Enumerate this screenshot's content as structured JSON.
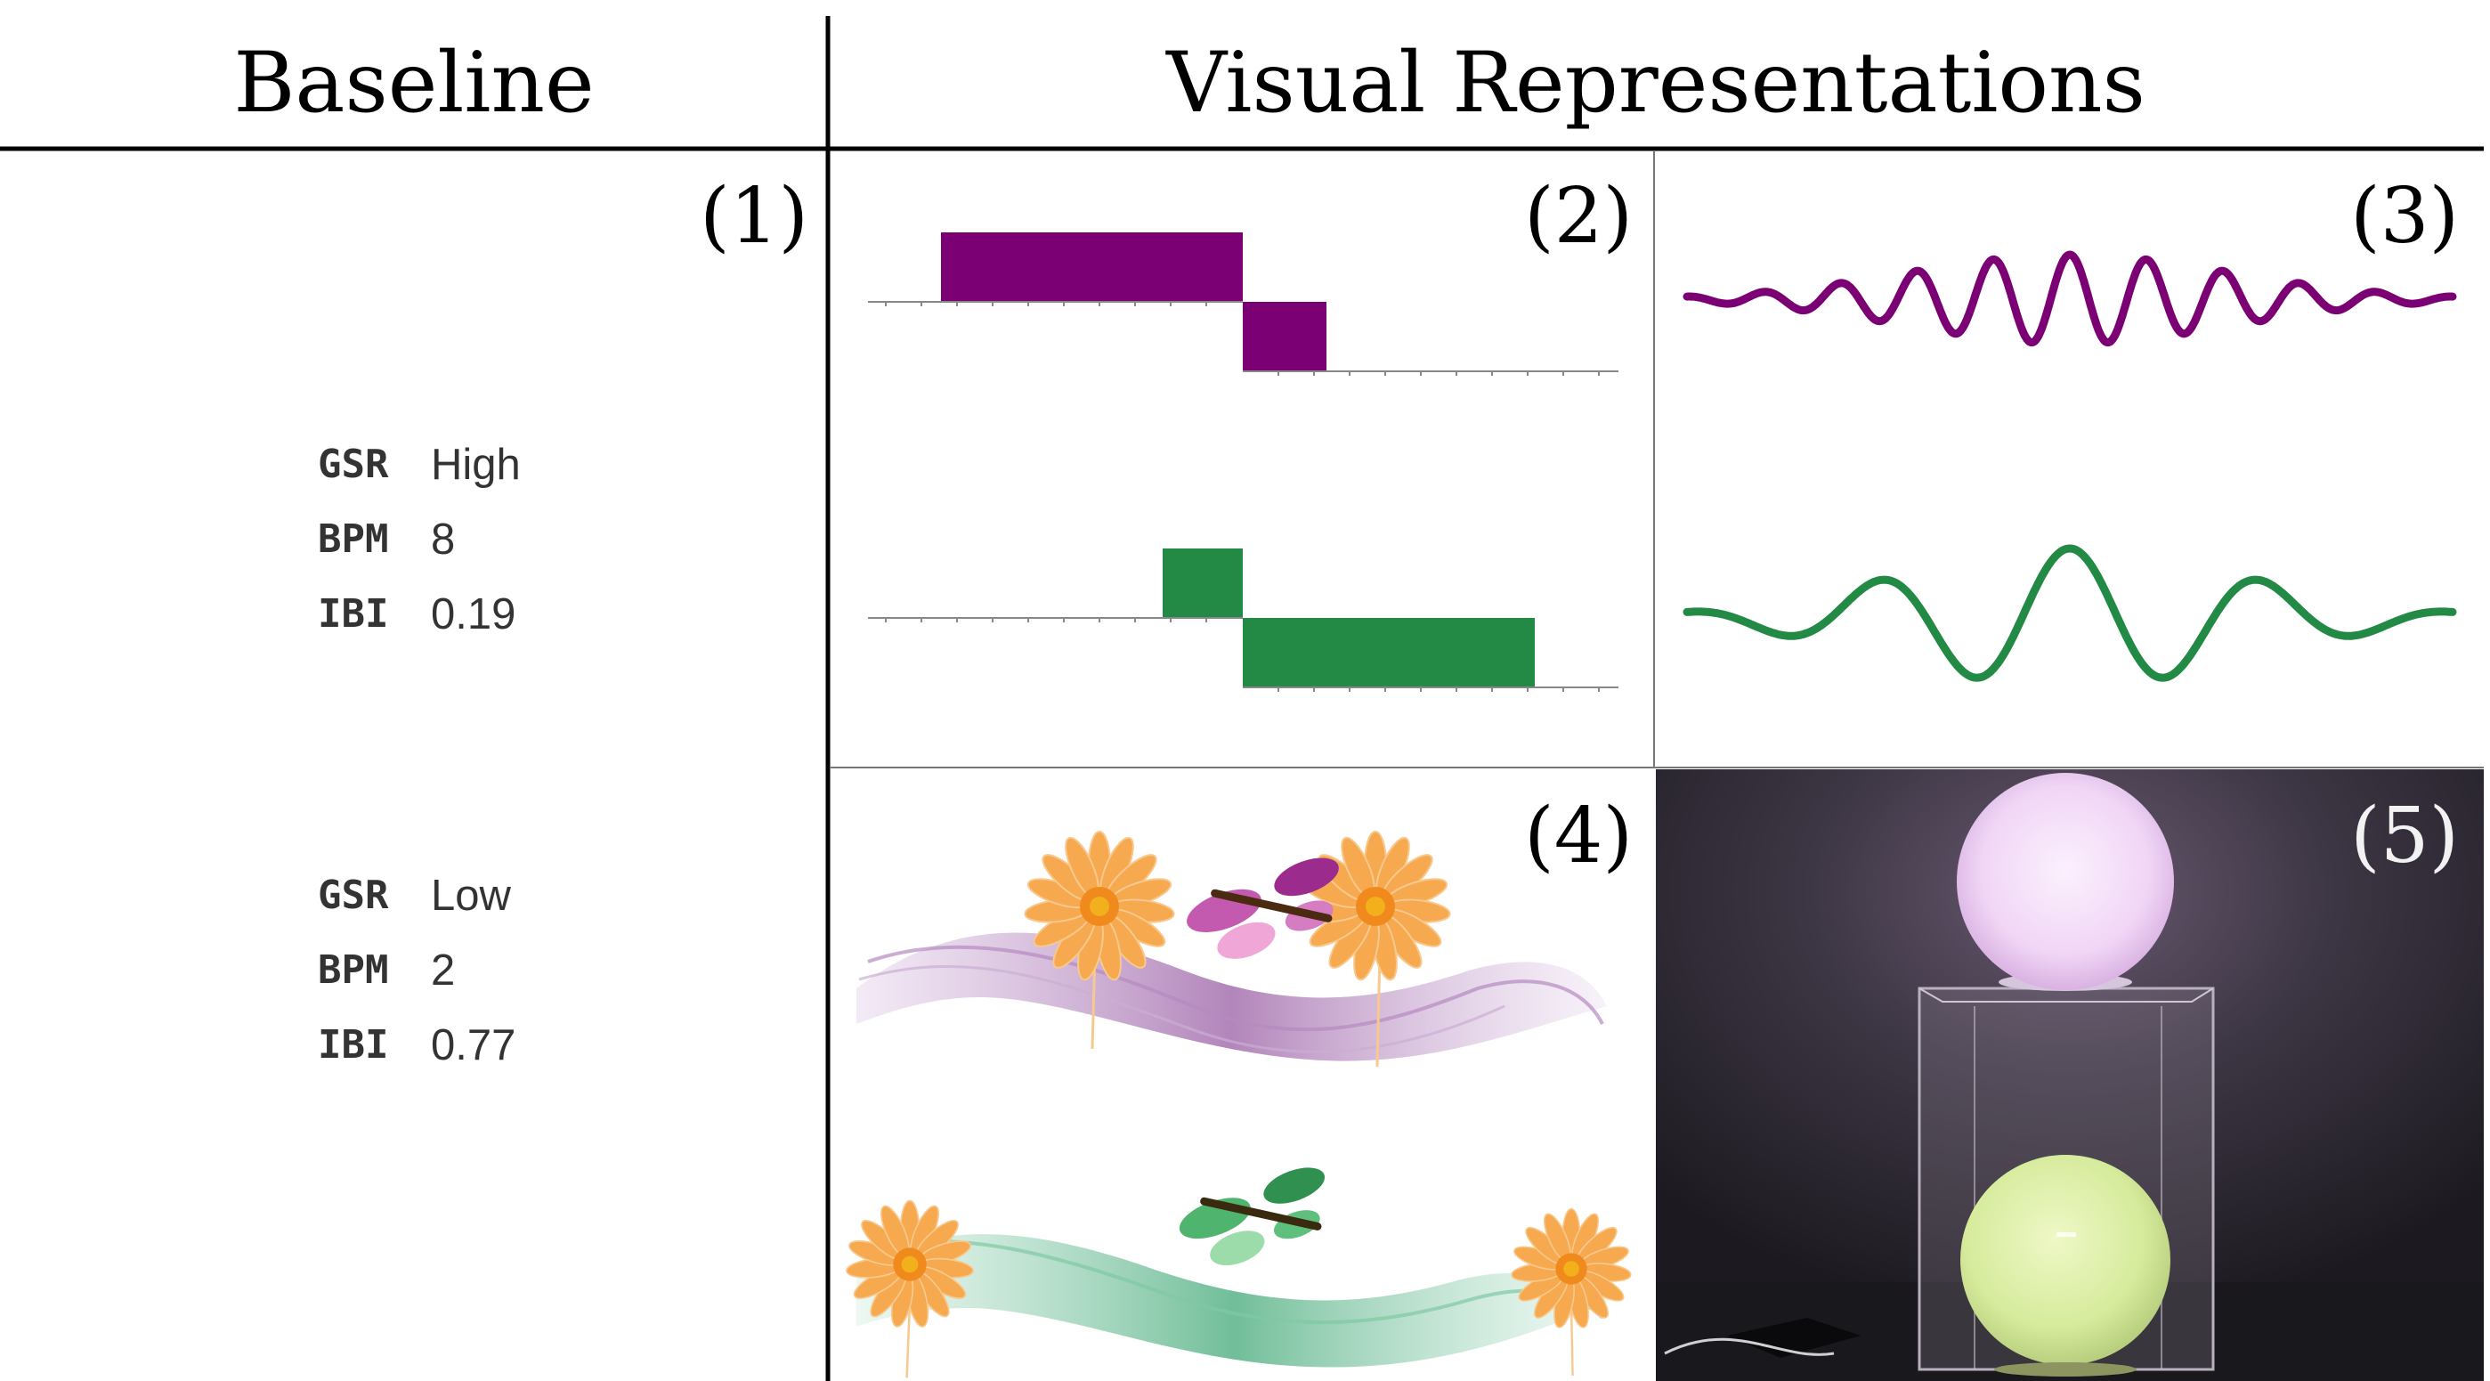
{
  "header": {
    "baseline": "Baseline",
    "visual": "Visual Representations"
  },
  "panels": {
    "p1": "(1)",
    "p2": "(2)",
    "p3": "(3)",
    "p4": "(4)",
    "p5": "(5)"
  },
  "baseline": {
    "high": [
      {
        "key": "GSR",
        "value": "High"
      },
      {
        "key": "BPM",
        "value": "8"
      },
      {
        "key": "IBI",
        "value": "0.19"
      }
    ],
    "low": [
      {
        "key": "GSR",
        "value": "Low"
      },
      {
        "key": "BPM",
        "value": "2"
      },
      {
        "key": "IBI",
        "value": "0.77"
      }
    ]
  },
  "colors": {
    "purple": "#7a0074",
    "green": "#238a45",
    "orange": "#f5a04a",
    "lamp_purple": "#f0d4f4",
    "lamp_green": "#d8ec9e"
  },
  "icons": [
    "flower-icon",
    "butterfly-icon",
    "wave-ribbon-icon",
    "orb-lamp-icon"
  ]
}
